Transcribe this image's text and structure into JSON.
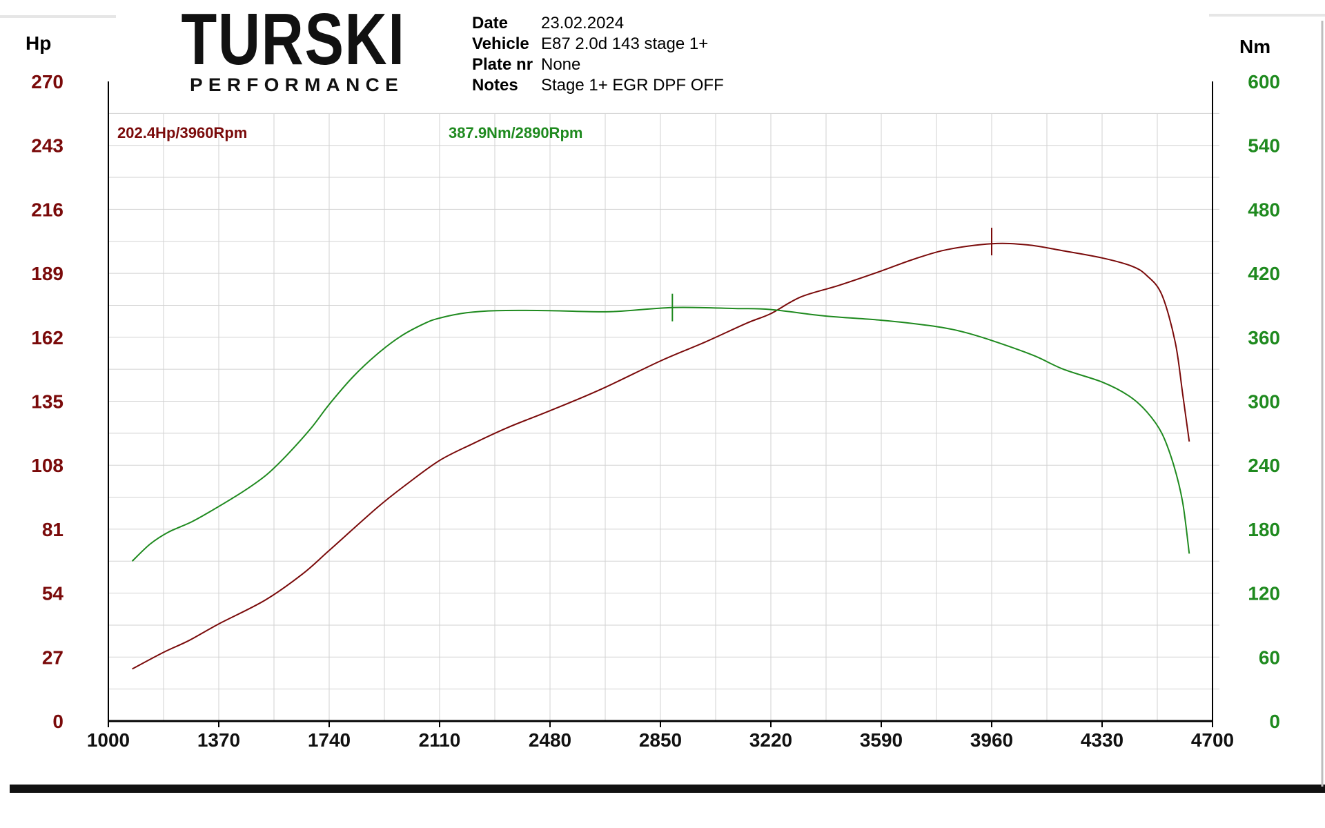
{
  "brand": {
    "name": "TURSKI",
    "tagline": "PERFORMANCE"
  },
  "info": {
    "date_label": "Date",
    "date_value": "23.02.2024",
    "vehicle_label": "Vehicle",
    "vehicle_value": "E87 2.0d 143 stage 1+",
    "plate_label": "Plate nr",
    "plate_value": "None",
    "notes_label": "Notes",
    "notes_value": "Stage 1+ EGR DPF OFF"
  },
  "colors": {
    "power": "#7a0a0a",
    "torque": "#1f8a1f",
    "grid": "#d2d2d2"
  },
  "chart_data": {
    "type": "line",
    "x_axis": {
      "range": [
        1000,
        4700
      ],
      "ticks": [
        "1000",
        "1370",
        "1740",
        "2110",
        "2480",
        "2850",
        "3220",
        "3590",
        "3960",
        "4330",
        "4700"
      ]
    },
    "y_left": {
      "unit": "Hp",
      "range": [
        0,
        270
      ],
      "ticks": [
        "0",
        "27",
        "54",
        "81",
        "108",
        "135",
        "162",
        "189",
        "216",
        "243",
        "270"
      ]
    },
    "y_right": {
      "unit": "Nm",
      "range": [
        0,
        600
      ],
      "ticks": [
        "0",
        "60",
        "120",
        "180",
        "240",
        "300",
        "360",
        "420",
        "480",
        "540",
        "600"
      ]
    },
    "grid": true,
    "series": [
      {
        "key": "power",
        "axis": "left",
        "peak_label": "202.4Hp/3960Rpm",
        "peak": [
          3960,
          202.4
        ],
        "points": [
          [
            1080,
            22
          ],
          [
            1185,
            29
          ],
          [
            1270,
            34
          ],
          [
            1370,
            41
          ],
          [
            1525,
            51
          ],
          [
            1650,
            62
          ],
          [
            1740,
            72
          ],
          [
            1900,
            90
          ],
          [
            2000,
            100
          ],
          [
            2110,
            110
          ],
          [
            2220,
            117
          ],
          [
            2340,
            124
          ],
          [
            2480,
            131
          ],
          [
            2650,
            140
          ],
          [
            2850,
            152
          ],
          [
            3000,
            160
          ],
          [
            3140,
            168
          ],
          [
            3220,
            172
          ],
          [
            3320,
            179
          ],
          [
            3450,
            184
          ],
          [
            3590,
            190
          ],
          [
            3700,
            195
          ],
          [
            3810,
            199
          ],
          [
            3960,
            201.5
          ],
          [
            4080,
            201
          ],
          [
            4200,
            198.5
          ],
          [
            4330,
            195.5
          ],
          [
            4430,
            192
          ],
          [
            4480,
            188
          ],
          [
            4530,
            180
          ],
          [
            4575,
            160
          ],
          [
            4600,
            138
          ],
          [
            4622,
            118
          ]
        ]
      },
      {
        "key": "torque",
        "axis": "right",
        "peak_label": "387.9Nm/2890Rpm",
        "peak": [
          2890,
          387.9
        ],
        "points": [
          [
            1080,
            150
          ],
          [
            1140,
            166
          ],
          [
            1200,
            177
          ],
          [
            1280,
            187
          ],
          [
            1350,
            198
          ],
          [
            1450,
            215
          ],
          [
            1530,
            231
          ],
          [
            1600,
            250
          ],
          [
            1680,
            275
          ],
          [
            1740,
            297
          ],
          [
            1820,
            323
          ],
          [
            1900,
            344
          ],
          [
            1980,
            361
          ],
          [
            2060,
            373
          ],
          [
            2110,
            378
          ],
          [
            2200,
            383
          ],
          [
            2300,
            385
          ],
          [
            2480,
            385
          ],
          [
            2680,
            384
          ],
          [
            2890,
            387.9
          ],
          [
            3100,
            387
          ],
          [
            3220,
            386
          ],
          [
            3400,
            380
          ],
          [
            3590,
            376
          ],
          [
            3750,
            371
          ],
          [
            3850,
            366
          ],
          [
            3960,
            357
          ],
          [
            4100,
            343
          ],
          [
            4200,
            330
          ],
          [
            4330,
            318
          ],
          [
            4420,
            305
          ],
          [
            4480,
            290
          ],
          [
            4530,
            270
          ],
          [
            4570,
            240
          ],
          [
            4600,
            205
          ],
          [
            4622,
            157
          ]
        ]
      }
    ]
  }
}
